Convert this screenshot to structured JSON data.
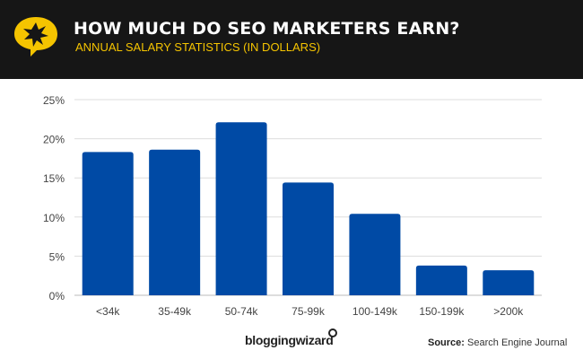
{
  "header": {
    "title": "HOW MUCH DO SEO MARKETERS EARN?",
    "subtitle": "ANNUAL SALARY STATISTICS (IN DOLLARS)",
    "logo_icon": "star-speech-bubble-icon",
    "accent_color": "#f5c400",
    "background_color": "#161616"
  },
  "footer": {
    "brand": "bloggingwizard",
    "source_label": "Source:",
    "source_value": "Search Engine Journal"
  },
  "chart_data": {
    "type": "bar",
    "categories": [
      "<34k",
      "35-49k",
      "50-74k",
      "75-99k",
      "100-149k",
      "150-199k",
      ">200k"
    ],
    "values": [
      18.3,
      18.6,
      22.1,
      14.4,
      10.4,
      3.8,
      3.2
    ],
    "yticks": [
      "0%",
      "5%",
      "10%",
      "15%",
      "20%",
      "25%"
    ],
    "ylim": [
      0,
      25
    ],
    "grid": true,
    "bar_color": "#004aa5",
    "title": "",
    "xlabel": "",
    "ylabel": ""
  }
}
